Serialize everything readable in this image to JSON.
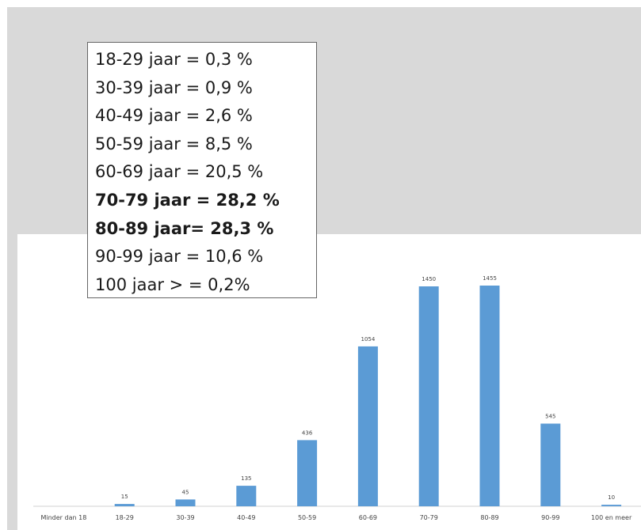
{
  "legend_lines": [
    {
      "text": "18-29 jaar = 0,3 %",
      "bold": false
    },
    {
      "text": "30-39 jaar = 0,9 %",
      "bold": false
    },
    {
      "text": "40-49 jaar = 2,6 %",
      "bold": false
    },
    {
      "text": "50-59 jaar = 8,5 %",
      "bold": false
    },
    {
      "text": "60-69 jaar = 20,5 %",
      "bold": false
    },
    {
      "text": "70-79 jaar = 28,2 %",
      "bold": true
    },
    {
      "text": "80-89 jaar= 28,3 %",
      "bold": true
    },
    {
      "text": "90-99 jaar = 10,6 %",
      "bold": false
    },
    {
      "text": "100 jaar > = 0,2%",
      "bold": false
    }
  ],
  "chart_data": {
    "type": "bar",
    "categories": [
      "Minder dan 18",
      "18-29",
      "30-39",
      "40-49",
      "50-59",
      "60-69",
      "70-79",
      "80-89",
      "90-99",
      "100 en meer"
    ],
    "values": [
      0,
      15,
      45,
      135,
      436,
      1054,
      1450,
      1455,
      545,
      10
    ],
    "value_labels": [
      "",
      "15",
      "45",
      "135",
      "436",
      "1054",
      "1450",
      "1455",
      "545",
      "10"
    ],
    "title": "",
    "xlabel": "",
    "ylabel": "",
    "ylim": [
      0,
      1455
    ],
    "grid": false,
    "bar_color": "#5b9bd5"
  }
}
